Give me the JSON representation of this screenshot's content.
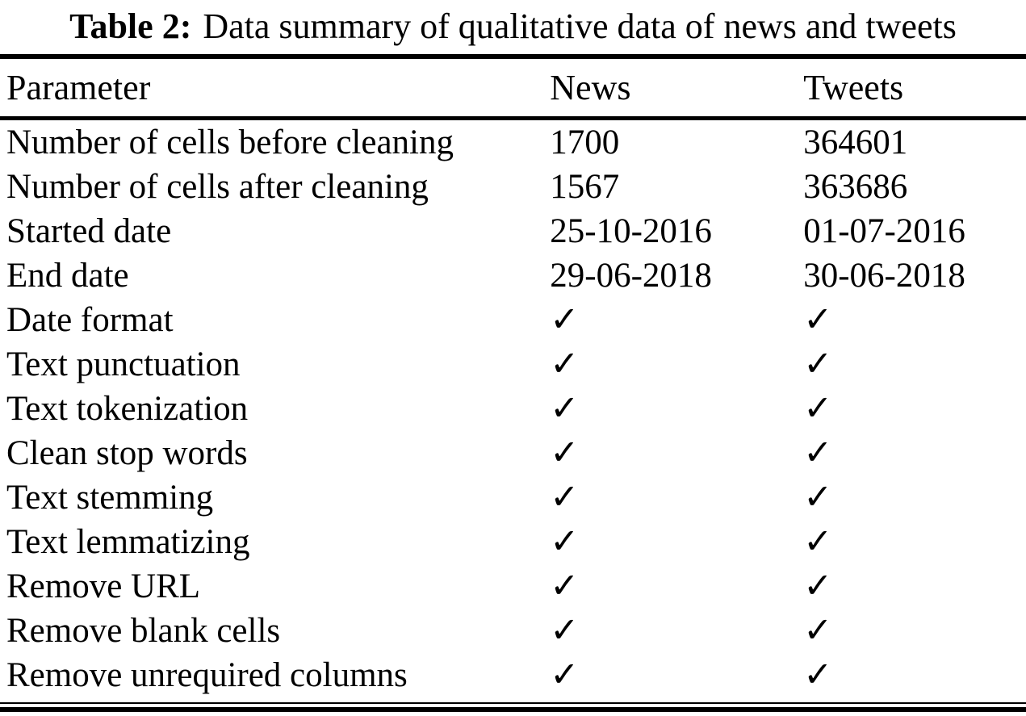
{
  "caption": {
    "label": "Table 2:",
    "text": "Data summary of qualitative data of news and tweets"
  },
  "table": {
    "columns": [
      "Parameter",
      "News",
      "Tweets"
    ],
    "checkmark": "✓",
    "rows": [
      {
        "parameter": "Number of cells before cleaning",
        "news": "1700",
        "tweets": "364601"
      },
      {
        "parameter": "Number of cells after cleaning",
        "news": "1567",
        "tweets": "363686"
      },
      {
        "parameter": "Started date",
        "news": "25-10-2016",
        "tweets": "01-07-2016"
      },
      {
        "parameter": "End date",
        "news": "29-06-2018",
        "tweets": "30-06-2018"
      },
      {
        "parameter": "Date format",
        "news": "✓",
        "tweets": "✓"
      },
      {
        "parameter": "Text punctuation",
        "news": "✓",
        "tweets": "✓"
      },
      {
        "parameter": "Text tokenization",
        "news": "✓",
        "tweets": "✓"
      },
      {
        "parameter": "Clean stop words",
        "news": "✓",
        "tweets": "✓"
      },
      {
        "parameter": "Text stemming",
        "news": "✓",
        "tweets": "✓"
      },
      {
        "parameter": "Text lemmatizing",
        "news": "✓",
        "tweets": "✓"
      },
      {
        "parameter": "Remove URL",
        "news": "✓",
        "tweets": "✓"
      },
      {
        "parameter": "Remove blank cells",
        "news": "✓",
        "tweets": "✓"
      },
      {
        "parameter": "Remove unrequired columns",
        "news": "✓",
        "tweets": "✓"
      }
    ]
  },
  "colors": {
    "text": "#000000",
    "background": "#ffffff",
    "rule": "#000000"
  }
}
